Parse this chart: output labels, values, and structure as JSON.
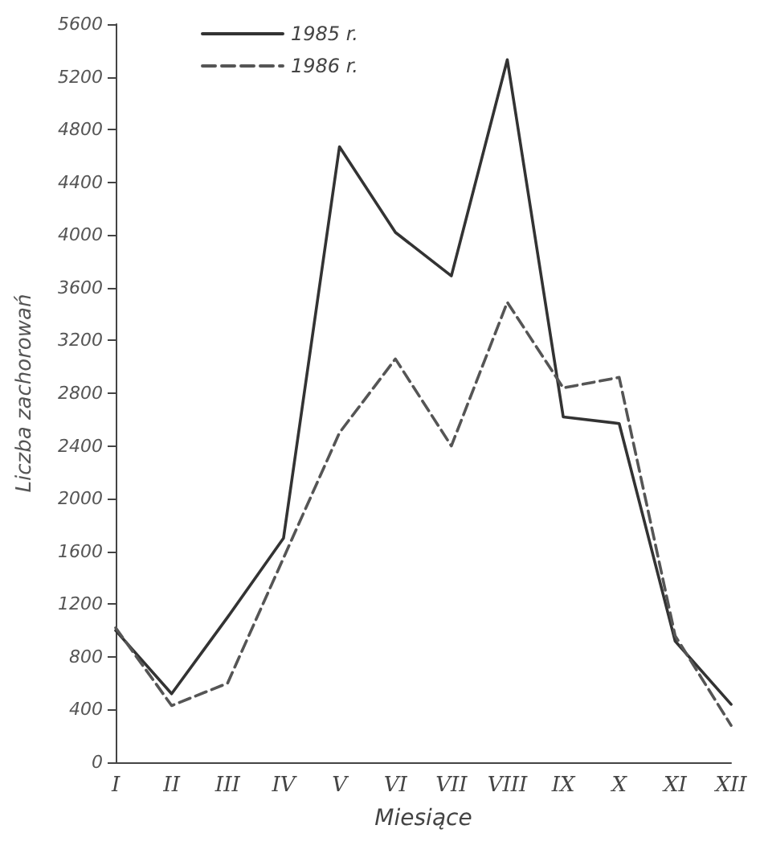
{
  "chart_data": {
    "type": "line",
    "xlabel": "Miesiące",
    "ylabel": "Liczba zachorowań",
    "categories": [
      "I",
      "II",
      "III",
      "IV",
      "V",
      "VI",
      "VII",
      "VIII",
      "IX",
      "X",
      "XI",
      "XII"
    ],
    "series": [
      {
        "name": "1985 r.",
        "color": "#333333",
        "line_style": "solid",
        "values": [
          1000,
          520,
          1100,
          1700,
          4670,
          4020,
          3690,
          5330,
          2620,
          2570,
          920,
          440
        ]
      },
      {
        "name": "1986 r.",
        "color": "#555555",
        "line_style": "dashed",
        "values": [
          1020,
          430,
          600,
          1550,
          2500,
          3060,
          2400,
          3490,
          2840,
          2920,
          960,
          280
        ]
      }
    ],
    "ylim": [
      0,
      5600
    ],
    "yticks": [
      0,
      400,
      800,
      1200,
      1600,
      2000,
      2400,
      2800,
      3200,
      3600,
      4000,
      4400,
      4800,
      5200,
      5600
    ],
    "grid": false,
    "legend": "top left",
    "marker": "none"
  }
}
